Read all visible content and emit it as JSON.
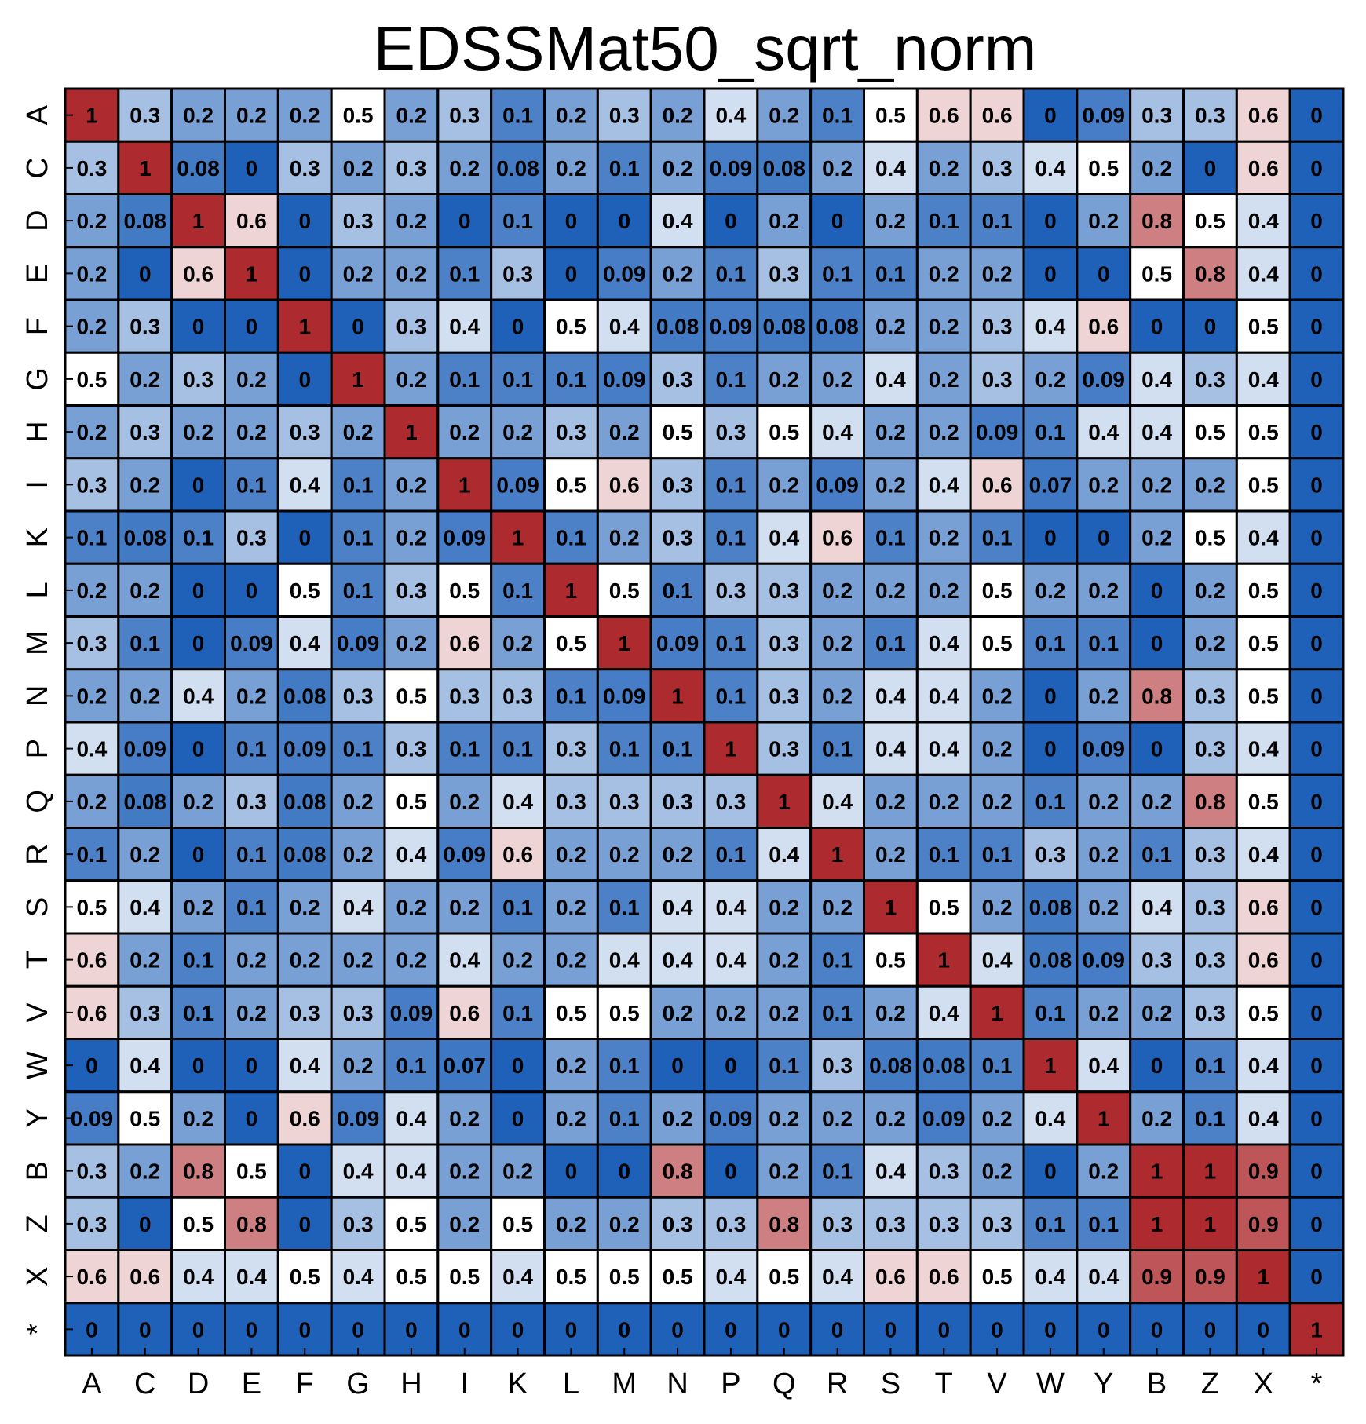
{
  "chart_data": {
    "type": "heatmap",
    "title": "EDSSMat50_sqrt_norm",
    "xlabel": "",
    "ylabel": "",
    "x_categories": [
      "A",
      "C",
      "D",
      "E",
      "F",
      "G",
      "H",
      "I",
      "K",
      "L",
      "M",
      "N",
      "P",
      "Q",
      "R",
      "S",
      "T",
      "V",
      "W",
      "Y",
      "B",
      "Z",
      "X",
      "*"
    ],
    "y_categories": [
      "A",
      "C",
      "D",
      "E",
      "F",
      "G",
      "H",
      "I",
      "K",
      "L",
      "M",
      "N",
      "P",
      "Q",
      "R",
      "S",
      "T",
      "V",
      "W",
      "Y",
      "B",
      "Z",
      "X",
      "*"
    ],
    "values": [
      [
        1,
        0.3,
        0.2,
        0.2,
        0.2,
        0.5,
        0.2,
        0.3,
        0.1,
        0.2,
        0.3,
        0.2,
        0.4,
        0.2,
        0.1,
        0.5,
        0.6,
        0.6,
        0,
        0.09,
        0.3,
        0.3,
        0.6,
        0
      ],
      [
        0.3,
        1,
        0.08,
        0,
        0.3,
        0.2,
        0.3,
        0.2,
        0.08,
        0.2,
        0.1,
        0.2,
        0.09,
        0.08,
        0.2,
        0.4,
        0.2,
        0.3,
        0.4,
        0.5,
        0.2,
        0,
        0.6,
        0
      ],
      [
        0.2,
        0.08,
        1,
        0.6,
        0,
        0.3,
        0.2,
        0,
        0.1,
        0,
        0,
        0.4,
        0,
        0.2,
        0,
        0.2,
        0.1,
        0.1,
        0,
        0.2,
        0.8,
        0.5,
        0.4,
        0
      ],
      [
        0.2,
        0,
        0.6,
        1,
        0,
        0.2,
        0.2,
        0.1,
        0.3,
        0,
        0.09,
        0.2,
        0.1,
        0.3,
        0.1,
        0.1,
        0.2,
        0.2,
        0,
        0,
        0.5,
        0.8,
        0.4,
        0
      ],
      [
        0.2,
        0.3,
        0,
        0,
        1,
        0,
        0.3,
        0.4,
        0,
        0.5,
        0.4,
        0.08,
        0.09,
        0.08,
        0.08,
        0.2,
        0.2,
        0.3,
        0.4,
        0.6,
        0,
        0,
        0.5,
        0
      ],
      [
        0.5,
        0.2,
        0.3,
        0.2,
        0,
        1,
        0.2,
        0.1,
        0.1,
        0.1,
        0.09,
        0.3,
        0.1,
        0.2,
        0.2,
        0.4,
        0.2,
        0.3,
        0.2,
        0.09,
        0.4,
        0.3,
        0.4,
        0
      ],
      [
        0.2,
        0.3,
        0.2,
        0.2,
        0.3,
        0.2,
        1,
        0.2,
        0.2,
        0.3,
        0.2,
        0.5,
        0.3,
        0.5,
        0.4,
        0.2,
        0.2,
        0.09,
        0.1,
        0.4,
        0.4,
        0.5,
        0.5,
        0
      ],
      [
        0.3,
        0.2,
        0,
        0.1,
        0.4,
        0.1,
        0.2,
        1,
        0.09,
        0.5,
        0.6,
        0.3,
        0.1,
        0.2,
        0.09,
        0.2,
        0.4,
        0.6,
        0.07,
        0.2,
        0.2,
        0.2,
        0.5,
        0
      ],
      [
        0.1,
        0.08,
        0.1,
        0.3,
        0,
        0.1,
        0.2,
        0.09,
        1,
        0.1,
        0.2,
        0.3,
        0.1,
        0.4,
        0.6,
        0.1,
        0.2,
        0.1,
        0,
        0,
        0.2,
        0.5,
        0.4,
        0
      ],
      [
        0.2,
        0.2,
        0,
        0,
        0.5,
        0.1,
        0.3,
        0.5,
        0.1,
        1,
        0.5,
        0.1,
        0.3,
        0.3,
        0.2,
        0.2,
        0.2,
        0.5,
        0.2,
        0.2,
        0,
        0.2,
        0.5,
        0
      ],
      [
        0.3,
        0.1,
        0,
        0.09,
        0.4,
        0.09,
        0.2,
        0.6,
        0.2,
        0.5,
        1,
        0.09,
        0.1,
        0.3,
        0.2,
        0.1,
        0.4,
        0.5,
        0.1,
        0.1,
        0,
        0.2,
        0.5,
        0
      ],
      [
        0.2,
        0.2,
        0.4,
        0.2,
        0.08,
        0.3,
        0.5,
        0.3,
        0.3,
        0.1,
        0.09,
        1,
        0.1,
        0.3,
        0.2,
        0.4,
        0.4,
        0.2,
        0,
        0.2,
        0.8,
        0.3,
        0.5,
        0
      ],
      [
        0.4,
        0.09,
        0,
        0.1,
        0.09,
        0.1,
        0.3,
        0.1,
        0.1,
        0.3,
        0.1,
        0.1,
        1,
        0.3,
        0.1,
        0.4,
        0.4,
        0.2,
        0,
        0.09,
        0,
        0.3,
        0.4,
        0
      ],
      [
        0.2,
        0.08,
        0.2,
        0.3,
        0.08,
        0.2,
        0.5,
        0.2,
        0.4,
        0.3,
        0.3,
        0.3,
        0.3,
        1,
        0.4,
        0.2,
        0.2,
        0.2,
        0.1,
        0.2,
        0.2,
        0.8,
        0.5,
        0
      ],
      [
        0.1,
        0.2,
        0,
        0.1,
        0.08,
        0.2,
        0.4,
        0.09,
        0.6,
        0.2,
        0.2,
        0.2,
        0.1,
        0.4,
        1,
        0.2,
        0.1,
        0.1,
        0.3,
        0.2,
        0.1,
        0.3,
        0.4,
        0
      ],
      [
        0.5,
        0.4,
        0.2,
        0.1,
        0.2,
        0.4,
        0.2,
        0.2,
        0.1,
        0.2,
        0.1,
        0.4,
        0.4,
        0.2,
        0.2,
        1,
        0.5,
        0.2,
        0.08,
        0.2,
        0.4,
        0.3,
        0.6,
        0
      ],
      [
        0.6,
        0.2,
        0.1,
        0.2,
        0.2,
        0.2,
        0.2,
        0.4,
        0.2,
        0.2,
        0.4,
        0.4,
        0.4,
        0.2,
        0.1,
        0.5,
        1,
        0.4,
        0.08,
        0.09,
        0.3,
        0.3,
        0.6,
        0
      ],
      [
        0.6,
        0.3,
        0.1,
        0.2,
        0.3,
        0.3,
        0.09,
        0.6,
        0.1,
        0.5,
        0.5,
        0.2,
        0.2,
        0.2,
        0.1,
        0.2,
        0.4,
        1,
        0.1,
        0.2,
        0.2,
        0.3,
        0.5,
        0
      ],
      [
        0,
        0.4,
        0,
        0,
        0.4,
        0.2,
        0.1,
        0.07,
        0,
        0.2,
        0.1,
        0,
        0,
        0.1,
        0.3,
        0.08,
        0.08,
        0.1,
        1,
        0.4,
        0,
        0.1,
        0.4,
        0
      ],
      [
        0.09,
        0.5,
        0.2,
        0,
        0.6,
        0.09,
        0.4,
        0.2,
        0,
        0.2,
        0.1,
        0.2,
        0.09,
        0.2,
        0.2,
        0.2,
        0.09,
        0.2,
        0.4,
        1,
        0.2,
        0.1,
        0.4,
        0
      ],
      [
        0.3,
        0.2,
        0.8,
        0.5,
        0,
        0.4,
        0.4,
        0.2,
        0.2,
        0,
        0,
        0.8,
        0,
        0.2,
        0.1,
        0.4,
        0.3,
        0.2,
        0,
        0.2,
        1,
        1,
        0.9,
        0
      ],
      [
        0.3,
        0,
        0.5,
        0.8,
        0,
        0.3,
        0.5,
        0.2,
        0.5,
        0.2,
        0.2,
        0.3,
        0.3,
        0.8,
        0.3,
        0.3,
        0.3,
        0.3,
        0.1,
        0.1,
        1,
        1,
        0.9,
        0
      ],
      [
        0.6,
        0.6,
        0.4,
        0.4,
        0.5,
        0.4,
        0.5,
        0.5,
        0.4,
        0.5,
        0.5,
        0.5,
        0.4,
        0.5,
        0.4,
        0.6,
        0.6,
        0.5,
        0.4,
        0.4,
        0.9,
        0.9,
        1,
        0
      ],
      [
        0,
        0,
        0,
        0,
        0,
        0,
        0,
        0,
        0,
        0,
        0,
        0,
        0,
        0,
        0,
        0,
        0,
        0,
        0,
        0,
        0,
        0,
        0,
        1
      ]
    ],
    "vmin": 0,
    "vmax": 1,
    "colormap": [
      "#1f61b9",
      "#ffffff",
      "#ad2a2f"
    ],
    "annotated": true,
    "grid": true,
    "legend": "none"
  }
}
